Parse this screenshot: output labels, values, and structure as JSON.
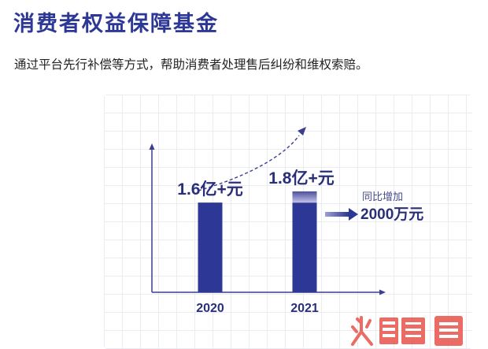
{
  "header": {
    "title": "消费者权益保障基金",
    "subtitle": "通过平台先行补偿等方式，帮助消费者处理售后纠纷和维权索赔。"
  },
  "chart_data": {
    "type": "bar",
    "categories": [
      "2020",
      "2021"
    ],
    "values": [
      1.6,
      1.8
    ],
    "value_labels": [
      "1.6亿+元",
      "1.8亿+元"
    ],
    "unit": "亿元",
    "ylim": [
      0,
      2.6
    ],
    "grid": true,
    "annotation": {
      "label": "同比增加",
      "value_text": "2000万元"
    },
    "colors": {
      "bar": "#2d3796",
      "bar_highlight_top": "#4c4f9c",
      "bar_highlight_bottom": "#c2c2e8",
      "axis": "#3a3f8f",
      "arrow": "#3b3f9b",
      "text": "#2a2f7a"
    }
  },
  "watermark": {
    "icon": "watermark-logo"
  }
}
